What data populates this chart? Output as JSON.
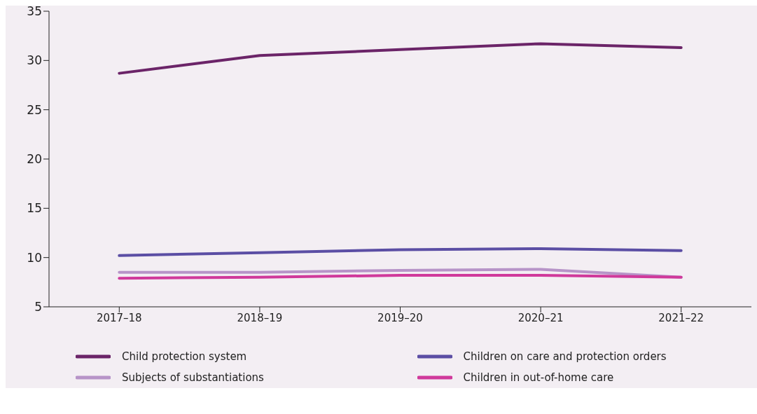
{
  "chart_data": {
    "type": "line",
    "categories": [
      "2017–18",
      "2018–19",
      "2019–20",
      "2020–21",
      "2021–22"
    ],
    "series": [
      {
        "name": "Child protection system",
        "color": "#6b2468",
        "values": [
          28.7,
          30.5,
          31.1,
          31.7,
          31.3
        ]
      },
      {
        "name": "Children on care and protection orders",
        "color": "#5b4ea4",
        "values": [
          10.2,
          10.5,
          10.8,
          10.9,
          10.7
        ]
      },
      {
        "name": "Subjects of substantiations",
        "color": "#b794c8",
        "values": [
          8.5,
          8.5,
          8.7,
          8.8,
          8.0
        ]
      },
      {
        "name": "Children in out-of-home care",
        "color": "#d0399b",
        "values": [
          7.9,
          8.0,
          8.2,
          8.2,
          8.0
        ]
      }
    ],
    "ylim": [
      5,
      35
    ],
    "yticks": [
      5,
      10,
      15,
      20,
      25,
      30,
      35
    ],
    "grid": false,
    "legend": "bottom",
    "marker": "none",
    "line_style": "solid"
  }
}
